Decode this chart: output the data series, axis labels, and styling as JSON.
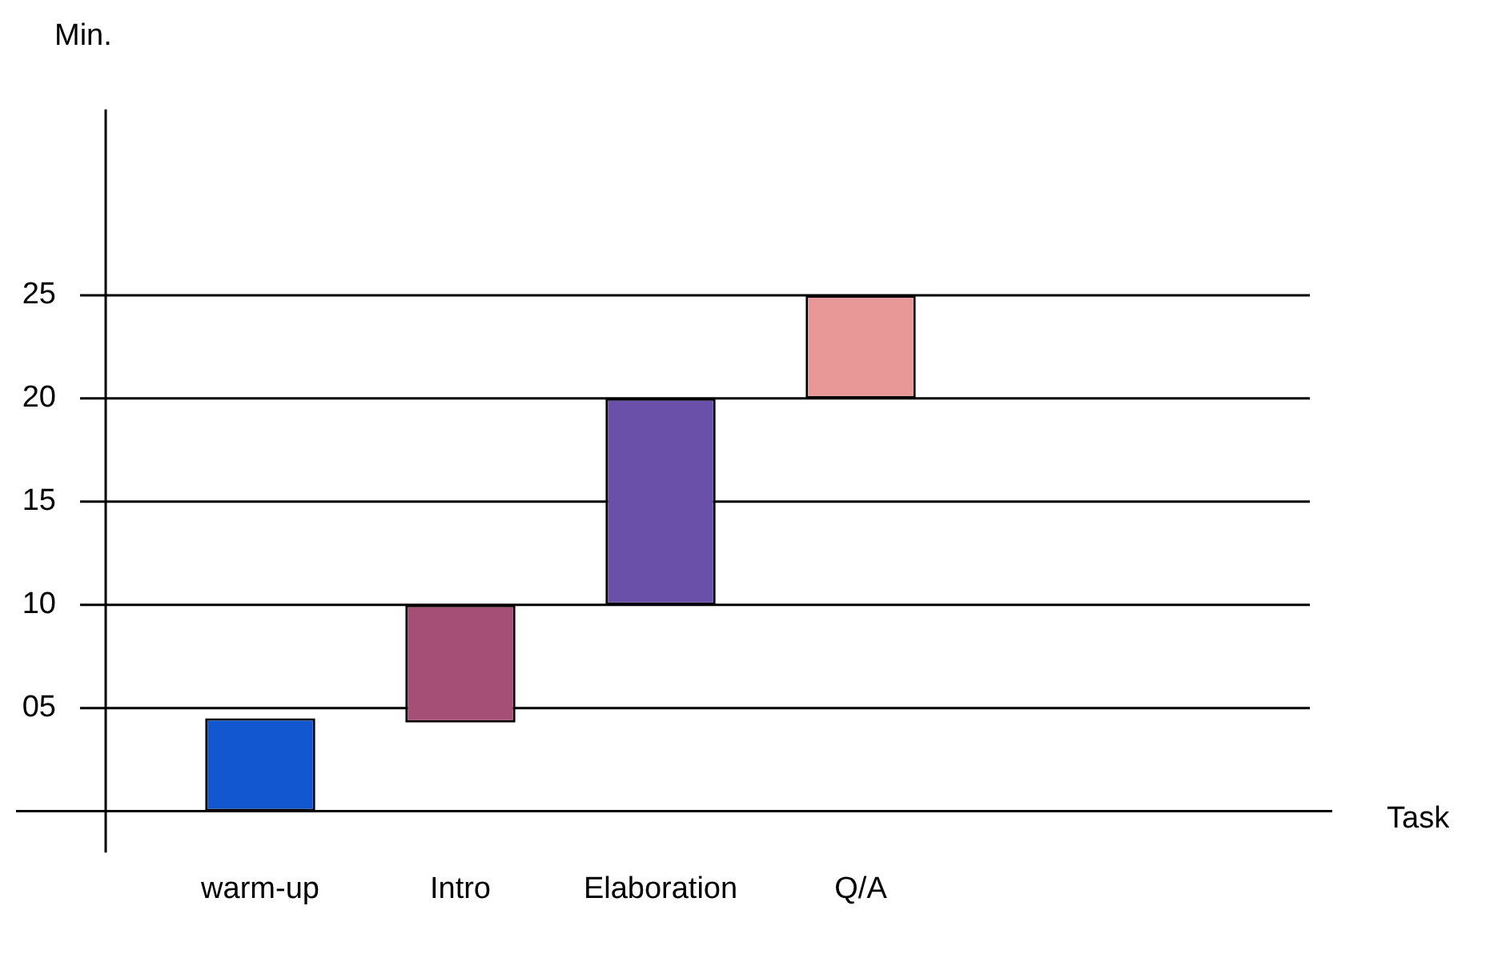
{
  "chart_data": {
    "type": "bar",
    "annotations": [
      "Task"
    ],
    "ylabel": "Min.",
    "categories": [
      "warm-up",
      "Intro",
      "Elaboration",
      "Q/A"
    ],
    "values": [
      4.5,
      5.7,
      10,
      5
    ],
    "base": [
      0,
      4.3,
      10,
      20
    ],
    "colors": [
      "#1257cf",
      "#a54e76",
      "#6a50a8",
      "#e99898"
    ],
    "ylim": [
      -2,
      34
    ],
    "yticks": [
      {
        "value": 0,
        "label": null
      },
      {
        "value": 5,
        "label": "05"
      },
      10,
      15,
      20,
      25
    ],
    "grid": "y",
    "legend": false
  }
}
